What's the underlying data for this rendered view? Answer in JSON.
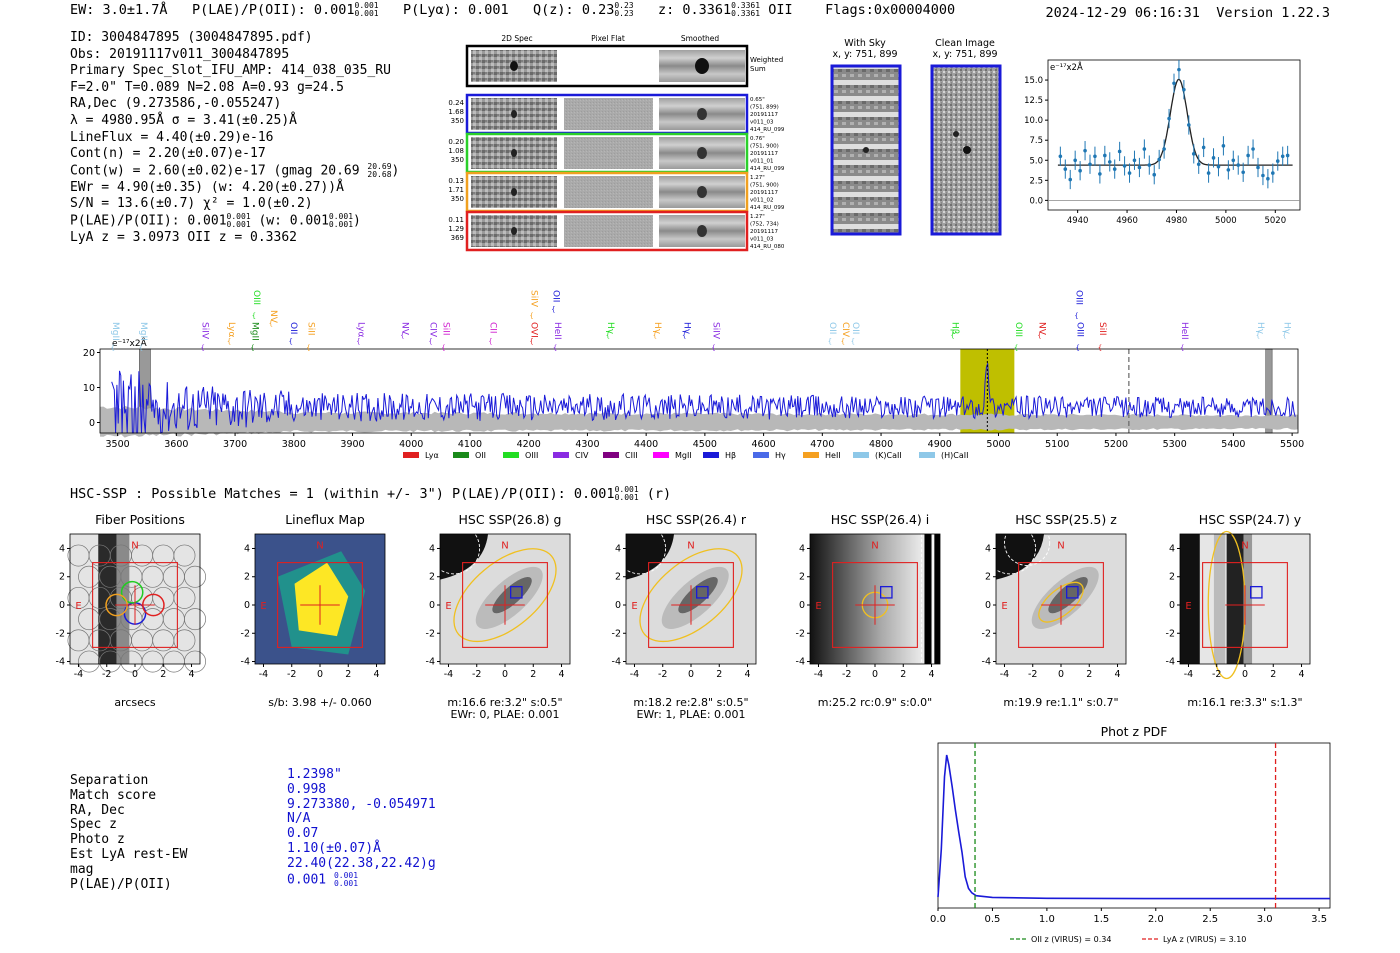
{
  "header": {
    "ew": "EW: 3.0±1.7Å",
    "plae": "P(LAE)/P(OII): 0.001",
    "plae_up": "0.001",
    "plae_lo": "0.001",
    "plya": "P(Lyα): 0.001",
    "qz": "Q(z): 0.23",
    "qz_up": "0.23",
    "qz_lo": "0.23",
    "z": "z: 0.3361",
    "z_up": "0.3361",
    "z_lo": "0.3361",
    "z_line": "OII",
    "flags": "Flags:0x00004000",
    "datetime": "2024-12-29 06:16:31",
    "version": "Version 1.22.3"
  },
  "info": {
    "id": "ID: 3004847895 (3004847895.pdf)",
    "obs": "Obs: 20191117v011_3004847895",
    "primary": "Primary Spec_Slot_IFU_AMP: 414_038_035_RU",
    "params": "F=2.0\"  T=0.089  N=2.08  A=0.93  g=24.5",
    "radec": "RA,Dec (9.273586,-0.055247)",
    "lambda": "λ = 4980.95Å  σ = 3.41(±0.25)Å",
    "lineflux": "LineFlux = 4.40(±0.29)e-16",
    "contn": "Cont(n) = 2.20(±0.07)e-17",
    "contw": "Cont(w) = 2.60(±0.02)e-17 (gmag 20.69",
    "contw_up": "20.69",
    "contw_lo": "20.68",
    "ewr": "EWr = 4.90(±0.35) (w: 4.20(±0.27))Å",
    "sn": "S/N = 13.6(±0.7)  χ² = 1.0(±0.2)",
    "plae": "P(LAE)/P(OII): 0.001",
    "plae_up": "0.001",
    "plae_lo": "0.001",
    "plae_w": "(w: 0.001",
    "plae_w_up": "0.001",
    "plae_w_lo": "0.001",
    "lyaz": "LyA z = 3.0973  OII z = 0.3362"
  },
  "spec2d": {
    "col_titles": [
      "2D Spec",
      "Pixel Flat",
      "Smoothed"
    ],
    "weighted_label": "Weighted Sum",
    "rows": [
      {
        "left": [
          "0.24",
          "1.68",
          "350"
        ],
        "right": [
          "0.65\"",
          "(751, 899)",
          "20191117",
          "v011_03",
          "414_RU_099"
        ],
        "color": "#1a1ad8"
      },
      {
        "left": [
          "0.20",
          "1.08",
          "350"
        ],
        "right": [
          "0.76\"",
          "(751, 900)",
          "20191117",
          "v011_01",
          "414_RU_099"
        ],
        "color": "#2ad02a"
      },
      {
        "left": [
          "0.13",
          "1.71",
          "350"
        ],
        "right": [
          "1.27\"",
          "(751, 900)",
          "20191117",
          "v011_02",
          "414_RU_099"
        ],
        "color": "#f0a020"
      },
      {
        "left": [
          "0.11",
          "1.29",
          "369"
        ],
        "right": [
          "1.27\"",
          "(752, 734)",
          "20191117",
          "v011_03",
          "414_RU_080"
        ],
        "color": "#e02020"
      }
    ]
  },
  "sky_panels": {
    "with_sky": "With Sky",
    "with_sky_xy": "x, y: 751, 899",
    "clean": "Clean Image",
    "clean_xy": "x, y: 751, 899"
  },
  "line_fit": {
    "type": "scatter",
    "ylabel": "e⁻¹⁷x2Å",
    "xlim": [
      4928,
      5030
    ],
    "ylim": [
      -1.2,
      17.5
    ],
    "xticks": [
      4940,
      4960,
      4980,
      5000,
      5020
    ],
    "yticks": [
      0.0,
      2.5,
      5.0,
      7.5,
      10.0,
      12.5,
      15.0
    ],
    "continuum": 4.4,
    "center": 4980.95,
    "sigma": 3.41,
    "peak": 15.1,
    "points": [
      [
        4933,
        5.5
      ],
      [
        4935,
        3.9
      ],
      [
        4937,
        2.6
      ],
      [
        4939,
        5.0
      ],
      [
        4941,
        3.7
      ],
      [
        4943,
        6.2
      ],
      [
        4945,
        4.5
      ],
      [
        4947,
        5.5
      ],
      [
        4949,
        3.3
      ],
      [
        4951,
        5.6
      ],
      [
        4953,
        4.8
      ],
      [
        4955,
        3.9
      ],
      [
        4957,
        6.1
      ],
      [
        4959,
        4.3
      ],
      [
        4961,
        3.4
      ],
      [
        4963,
        5.0
      ],
      [
        4965,
        4.1
      ],
      [
        4967,
        6.4
      ],
      [
        4969,
        4.4
      ],
      [
        4971,
        3.2
      ],
      [
        4973,
        5.1
      ],
      [
        4975,
        6.4
      ],
      [
        4977,
        10.2
      ],
      [
        4979,
        14.6
      ],
      [
        4981,
        16.3
      ],
      [
        4983,
        13.8
      ],
      [
        4985,
        9.4
      ],
      [
        4987,
        5.8
      ],
      [
        4989,
        4.5
      ],
      [
        4991,
        6.6
      ],
      [
        4993,
        3.4
      ],
      [
        4995,
        5.3
      ],
      [
        4997,
        4.2
      ],
      [
        4999,
        6.8
      ],
      [
        5001,
        3.8
      ],
      [
        5003,
        5.0
      ],
      [
        5005,
        4.4
      ],
      [
        5007,
        3.5
      ],
      [
        5009,
        5.6
      ],
      [
        5011,
        6.4
      ],
      [
        5013,
        4.1
      ],
      [
        5015,
        3.1
      ],
      [
        5017,
        2.7
      ],
      [
        5019,
        3.4
      ],
      [
        5021,
        4.9
      ],
      [
        5023,
        5.5
      ],
      [
        5025,
        5.6
      ]
    ]
  },
  "full_spectrum": {
    "type": "line",
    "ylabel": "e⁻¹⁷x2Å",
    "xlim": [
      3470,
      5510
    ],
    "ylim": [
      -3,
      21
    ],
    "xticks": [
      3500,
      3600,
      3700,
      3800,
      3900,
      4000,
      4100,
      4200,
      4300,
      4400,
      4500,
      4600,
      4700,
      4800,
      4900,
      5000,
      5100,
      5200,
      5300,
      5400,
      5500
    ],
    "yticks": [
      0,
      10,
      20
    ],
    "highlight_band": [
      4935,
      5027
    ],
    "detect_line": 4981,
    "dashed_line": 5222,
    "masked_bands": [
      [
        3537,
        3556
      ],
      [
        5455,
        5466
      ]
    ],
    "lines": [
      {
        "label": "MgII",
        "x": 3497,
        "color": "#8ec8e8",
        "row": "low"
      },
      {
        "label": "MgII",
        "x": 3545,
        "color": "#8ec8e8",
        "row": "low"
      },
      {
        "label": "SiIV",
        "x": 3650,
        "color": "#8a2be2",
        "row": "low"
      },
      {
        "label": "Lyα",
        "x": 3695,
        "color": "#f5a020",
        "row": "low"
      },
      {
        "label": "MgII",
        "x": 3735,
        "color": "#1a8a1a",
        "row": "low"
      },
      {
        "label": "OIII",
        "x": 3737,
        "color": "#22dd22",
        "row": "high"
      },
      {
        "label": "NV",
        "x": 3766,
        "color": "#f5a020",
        "row": "mid"
      },
      {
        "label": "OII",
        "x": 3800,
        "color": "#1a1ad8",
        "row": "low"
      },
      {
        "label": "SiII",
        "x": 3830,
        "color": "#f5a020",
        "row": "low"
      },
      {
        "label": "Lyα",
        "x": 3915,
        "color": "#8a2be2",
        "row": "low"
      },
      {
        "label": "NV",
        "x": 3990,
        "color": "#8a2be2",
        "row": "low"
      },
      {
        "label": "CIV",
        "x": 4038,
        "color": "#8a2be2",
        "row": "low"
      },
      {
        "label": "SiII",
        "x": 4060,
        "color": "#d020d0",
        "row": "low"
      },
      {
        "label": "CII",
        "x": 4140,
        "color": "#d020d0",
        "row": "low"
      },
      {
        "label": "OVI",
        "x": 4210,
        "color": "#e02020",
        "row": "low"
      },
      {
        "label": "SiIV",
        "x": 4210,
        "color": "#f5a020",
        "row": "high"
      },
      {
        "label": "OII",
        "x": 4247,
        "color": "#1a1ad8",
        "row": "high"
      },
      {
        "label": "HeII",
        "x": 4250,
        "color": "#8a2be2",
        "row": "low"
      },
      {
        "label": "Hγ",
        "x": 4340,
        "color": "#22dd22",
        "row": "low"
      },
      {
        "label": "Hγ",
        "x": 4420,
        "color": "#f5a020",
        "row": "low"
      },
      {
        "label": "Hγ",
        "x": 4470,
        "color": "#1a1ad8",
        "row": "low"
      },
      {
        "label": "SiIV",
        "x": 4520,
        "color": "#8a2be2",
        "row": "low"
      },
      {
        "label": "OII",
        "x": 4718,
        "color": "#8ec8e8",
        "row": "low"
      },
      {
        "label": "CIV",
        "x": 4740,
        "color": "#f5a020",
        "row": "low"
      },
      {
        "label": "OII",
        "x": 4757,
        "color": "#8ec8e8",
        "row": "low"
      },
      {
        "label": "Hβ",
        "x": 4927,
        "color": "#22dd22",
        "row": "low"
      },
      {
        "label": "OIII",
        "x": 5035,
        "color": "#22dd22",
        "row": "low"
      },
      {
        "label": "NV",
        "x": 5075,
        "color": "#e02020",
        "row": "low"
      },
      {
        "label": "OIII",
        "x": 5138,
        "color": "#1a1ad8",
        "row": "high"
      },
      {
        "label": "OIII",
        "x": 5140,
        "color": "#1a1ad8",
        "row": "low"
      },
      {
        "label": "SiII",
        "x": 5178,
        "color": "#e02020",
        "row": "low"
      },
      {
        "label": "HeII",
        "x": 5318,
        "color": "#8a2be2",
        "row": "low"
      },
      {
        "label": "Hγ",
        "x": 5447,
        "color": "#8ec8e8",
        "row": "low"
      },
      {
        "label": "Hγ",
        "x": 5492,
        "color": "#8ec8e8",
        "row": "low"
      }
    ],
    "legend": [
      {
        "label": "Lyα",
        "color": "#e02020"
      },
      {
        "label": "OII",
        "color": "#1a8a1a"
      },
      {
        "label": "OIII",
        "color": "#22dd22"
      },
      {
        "label": "CIV",
        "color": "#8a2be2"
      },
      {
        "label": "CIII",
        "color": "#800080"
      },
      {
        "label": "MgII",
        "color": "#ff00ff"
      },
      {
        "label": "Hβ",
        "color": "#1a1ad8"
      },
      {
        "label": "Hγ",
        "color": "#4a6ae8"
      },
      {
        "label": "HeII",
        "color": "#f5a020"
      },
      {
        "label": "(K)CaII",
        "color": "#8ec8e8"
      },
      {
        "label": "(H)CaII",
        "color": "#8ec8e8"
      }
    ]
  },
  "hsc": {
    "title": "HSC-SSP : Possible Matches = 1 (within +/- 3\")  P(LAE)/P(OII): 0.001",
    "title_up": "0.001",
    "title_lo": "0.001",
    "title_tail": "(r)",
    "panels": [
      {
        "title": "Fiber Positions",
        "cap1": "arcsecs",
        "cap2": ""
      },
      {
        "title": "Lineflux Map",
        "cap1": "s/b: 3.98 +/- 0.060",
        "cap2": ""
      },
      {
        "title": "HSC SSP(26.8) g",
        "cap1": "m:16.6  re:3.2\"  s:0.5\"",
        "cap2": "EWr: 0, PLAE: 0.001"
      },
      {
        "title": "HSC SSP(26.4) r",
        "cap1": "m:18.2  re:2.8\"  s:0.5\"",
        "cap2": "EWr: 1, PLAE: 0.001"
      },
      {
        "title": "HSC SSP(26.4) i",
        "cap1": "m:25.2 rc:0.9\"  s:0.0\"",
        "cap2": ""
      },
      {
        "title": "HSC SSP(25.5) z",
        "cap1": "m:19.9  re:1.1\"  s:0.7\"",
        "cap2": ""
      },
      {
        "title": "HSC SSP(24.7) y",
        "cap1": "m:16.1  re:3.3\"  s:1.3\"",
        "cap2": ""
      }
    ],
    "compass_n": "N",
    "compass_e": "E",
    "ticks": [
      "-4",
      "-2",
      "0",
      "2",
      "4"
    ]
  },
  "match": {
    "labels": [
      "Separation",
      "Match score",
      "RA, Dec",
      "Spec z",
      "Photo z",
      "Est LyA rest-EW",
      "mag",
      "P(LAE)/P(OII)"
    ],
    "values": [
      "1.2398\"",
      "0.998",
      "9.273380, -0.054971",
      "N/A",
      "0.07",
      "1.10(±0.07)Å",
      "22.40(22.38,22.42)g",
      "0.001"
    ],
    "plae_up": "0.001",
    "plae_lo": "0.001"
  },
  "photz": {
    "type": "line",
    "title": "Phot z PDF",
    "xlim": [
      0,
      3.6
    ],
    "xticks": [
      "0.0",
      "0.5",
      "1.0",
      "1.5",
      "2.0",
      "2.5",
      "3.0",
      "3.5"
    ],
    "oii_z": 0.34,
    "lya_z": 3.1,
    "legend_oii": "OII z (VIRUS) = 0.34",
    "legend_lya": "LyA z (VIRUS) = 3.10",
    "curve": [
      [
        0.0,
        0.02
      ],
      [
        0.03,
        0.35
      ],
      [
        0.06,
        0.85
      ],
      [
        0.08,
        1.0
      ],
      [
        0.1,
        0.93
      ],
      [
        0.13,
        0.78
      ],
      [
        0.16,
        0.62
      ],
      [
        0.19,
        0.47
      ],
      [
        0.22,
        0.33
      ],
      [
        0.25,
        0.16
      ],
      [
        0.28,
        0.08
      ],
      [
        0.31,
        0.05
      ],
      [
        0.35,
        0.03
      ],
      [
        0.5,
        0.018
      ],
      [
        1.0,
        0.012
      ],
      [
        2.0,
        0.01
      ],
      [
        3.6,
        0.01
      ]
    ]
  }
}
